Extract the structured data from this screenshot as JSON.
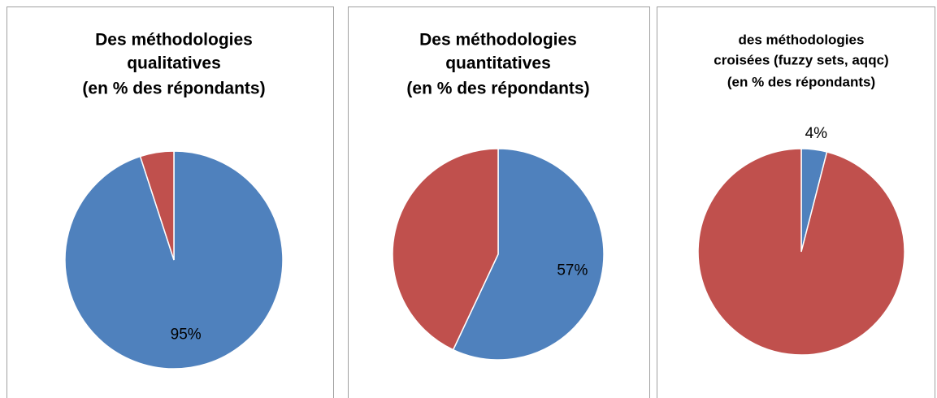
{
  "chart_data": [
    {
      "type": "pie",
      "title": [
        "Des méthodologies",
        "qualitatives",
        "(en % des répondants)"
      ],
      "values": [
        95,
        5
      ],
      "value_labels": [
        "95%",
        null
      ],
      "colors": [
        "#4f81bd",
        "#c0504d"
      ]
    },
    {
      "type": "pie",
      "title": [
        "Des méthodologies",
        "quantitatives",
        "(en % des répondants)"
      ],
      "values": [
        57,
        43
      ],
      "value_labels": [
        "57%",
        null
      ],
      "colors": [
        "#4f81bd",
        "#c0504d"
      ]
    },
    {
      "type": "pie",
      "title": [
        "des méthodologies",
        "croisées (fuzzy sets, aqqc)",
        "(en % des répondants)"
      ],
      "values": [
        4,
        96
      ],
      "value_labels": [
        "4%",
        null
      ],
      "colors": [
        "#4f81bd",
        "#c0504d"
      ]
    }
  ]
}
